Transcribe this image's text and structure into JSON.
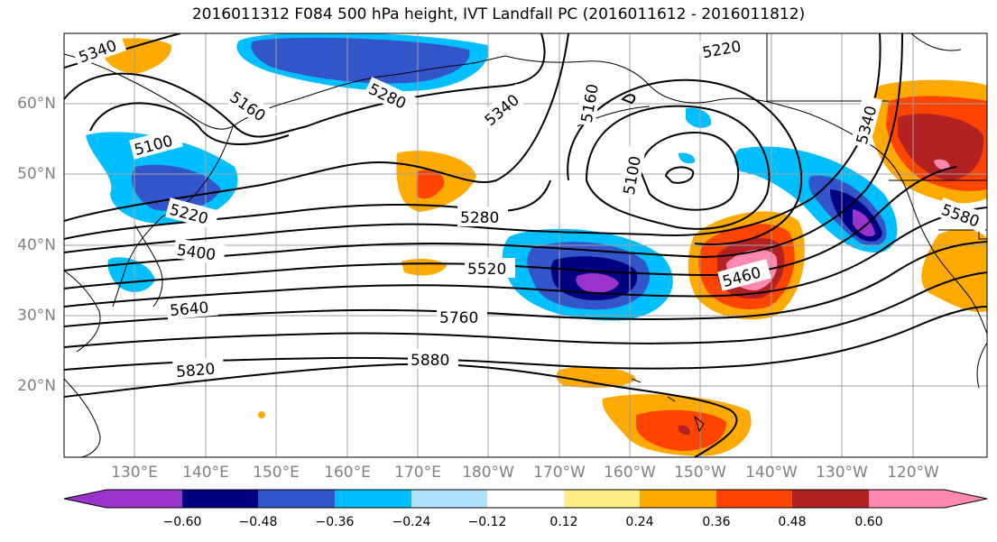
{
  "title": "2016011312 F084 500 hPa height, IVT Landfall PC (2016011612 - 2016011812)",
  "latitude_labels": [
    "60°N",
    "50°N",
    "40°N",
    "30°N",
    "20°N"
  ],
  "longitude_labels": [
    "130°E",
    "140°E",
    "150°E",
    "160°E",
    "170°E",
    "180°W",
    "170°W",
    "160°W",
    "150°W",
    "140°W",
    "130°W",
    "120°W"
  ],
  "contour_labels": [
    "5340",
    "5280",
    "5340",
    "5160",
    "5220",
    "5100",
    "5160",
    "5100",
    "5220",
    "5280",
    "5400",
    "5520",
    "5640",
    "5760",
    "5820",
    "5880",
    "5460",
    "5340",
    "5580"
  ],
  "colorbar": {
    "tick_labels": [
      "−0.60",
      "−0.48",
      "−0.36",
      "−0.24",
      "−0.12",
      "0.12",
      "0.24",
      "0.36",
      "0.48",
      "0.60"
    ],
    "colors": [
      "#9933cc",
      "#000080",
      "#3355cc",
      "#00bfff",
      "#b0e2ff",
      "#ffffff",
      "#ffee88",
      "#ffaa00",
      "#ff4400",
      "#b22222",
      "#ff88b0"
    ]
  },
  "colors": {
    "grid": "#a0a0a0",
    "contour": "#000000",
    "coast": "#000000"
  }
}
